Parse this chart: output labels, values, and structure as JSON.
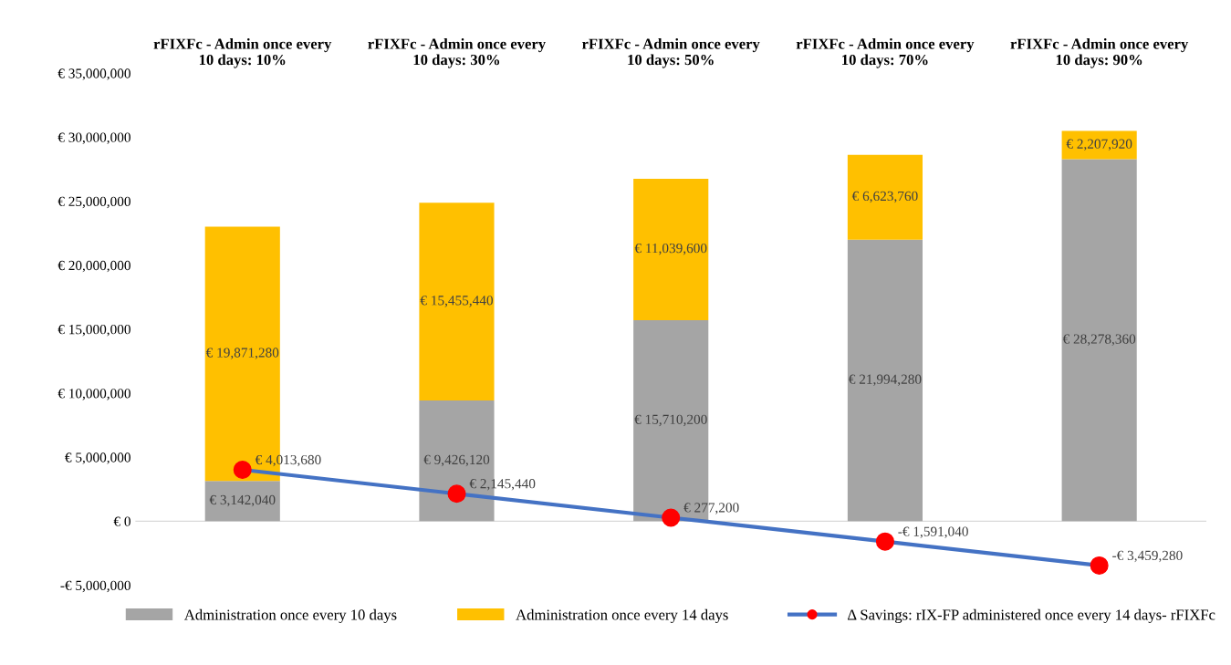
{
  "chart_data": {
    "type": "bar",
    "stacked": true,
    "categories": [
      "rFIXFc - Admin once every 10 days: 10%",
      "rFIXFc - Admin once every 10 days: 30%",
      "rFIXFc - Admin once every 10 days: 50%",
      "rFIXFc - Admin once every 10 days: 70%",
      "rFIXFc - Admin once every 10 days: 90%"
    ],
    "series": [
      {
        "name": "Administration once every 10 days",
        "color": "#a5a5a5",
        "values": [
          3142040,
          9426120,
          15710200,
          21994280,
          28278360
        ],
        "value_labels": [
          "€ 3,142,040",
          "€ 9,426,120",
          "€ 15,710,200",
          "€ 21,994,280",
          "€ 28,278,360"
        ]
      },
      {
        "name": "Administration once every 14 days",
        "color": "#ffc000",
        "values": [
          19871280,
          15455440,
          11039600,
          6623760,
          2207920
        ],
        "value_labels": [
          "€ 19,871,280",
          "€ 15,455,440",
          "€ 11,039,600",
          "€ 6,623,760",
          "€ 2,207,920"
        ]
      },
      {
        "name": "Δ Savings: rIX-FP administered once every 14 days- rFIXFc",
        "type": "line",
        "color": "#4472c4",
        "colors": [
          "#ff0000",
          "#ff0000",
          "#ff0000",
          "#ff0000",
          "#ff0000"
        ],
        "marker": "circle",
        "values": [
          4013680,
          2145440,
          277200,
          -1591040,
          -3459280
        ],
        "value_labels": [
          "€ 4,013,680",
          "€ 2,145,440",
          "€ 277,200",
          "-€ 1,591,040",
          "-€ 3,459,280"
        ]
      }
    ],
    "ylim": [
      -5000000,
      35000000
    ],
    "yticks": [
      {
        "value": -5000000,
        "label": "-€ 5,000,000"
      },
      {
        "value": 0,
        "label": "€ 0"
      },
      {
        "value": 5000000,
        "label": "€ 5,000,000"
      },
      {
        "value": 10000000,
        "label": "€ 10,000,000"
      },
      {
        "value": 15000000,
        "label": "€ 15,000,000"
      },
      {
        "value": 20000000,
        "label": "€ 20,000,000"
      },
      {
        "value": 25000000,
        "label": "€ 25,000,000"
      },
      {
        "value": 30000000,
        "label": "€ 30,000,000"
      },
      {
        "value": 35000000,
        "label": "€ 35,000,000"
      }
    ],
    "ref_lines": [
      {
        "axis": "y",
        "value": 0,
        "color": "#d9d9d9"
      }
    ],
    "legend": "bottom"
  }
}
